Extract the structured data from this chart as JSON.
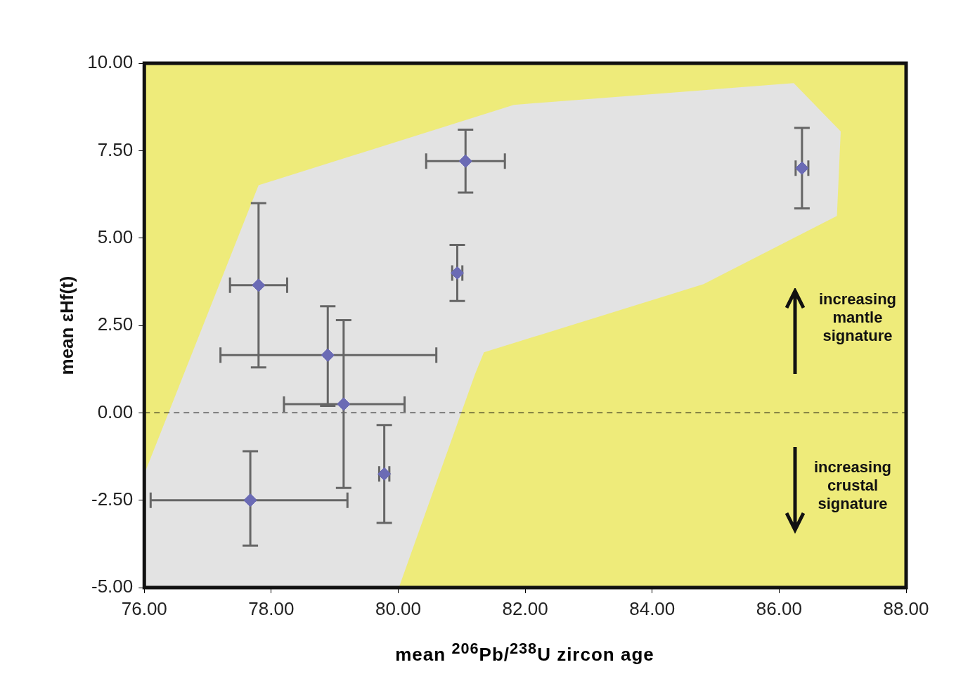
{
  "chart_data": {
    "type": "scatter",
    "xlabel": "mean $^{206}$Pb/$^{238}$U zircon age",
    "ylabel": "mean εHf(t)",
    "xlim": [
      76,
      88
    ],
    "xticks": [
      {
        "value": 76,
        "label": "76.00"
      },
      {
        "value": 78,
        "label": "78.00"
      },
      {
        "value": 80,
        "label": "80.00"
      },
      {
        "value": 82,
        "label": "82.00"
      },
      {
        "value": 84,
        "label": "84.00"
      },
      {
        "value": 86,
        "label": "86.00"
      },
      {
        "value": 88,
        "label": "88.00"
      }
    ],
    "ylim": [
      -5,
      10
    ],
    "yticks": [
      {
        "value": -5,
        "label": "-5.00"
      },
      {
        "value": -2.5,
        "label": "-2.50"
      },
      {
        "value": 0,
        "label": "0.00"
      },
      {
        "value": 2.5,
        "label": "2.50"
      },
      {
        "value": 5,
        "label": "5.00"
      },
      {
        "value": 7.5,
        "label": "7.50"
      },
      {
        "value": 10,
        "label": "10.00"
      }
    ],
    "grid": false,
    "legend": false,
    "series": [
      {
        "type": "area",
        "color": "#e3e3e3",
        "x": [
          76.02,
          77.8,
          81.82,
          86.23,
          86.97,
          86.91,
          84.81,
          81.35,
          81.21,
          80.01,
          76.02
        ],
        "values": [
          -1.66,
          6.51,
          8.81,
          9.43,
          8.05,
          5.63,
          3.68,
          1.73,
          1.11,
          -5,
          -5
        ]
      },
      {
        "color": "#6b6bb5",
        "marker": "diamond",
        "x": [
          77.8,
          78.89,
          79.14,
          77.67,
          79.78,
          80.93,
          81.06,
          86.36
        ],
        "values": [
          3.65,
          1.65,
          0.25,
          -2.5,
          -1.75,
          4.0,
          7.2,
          7.0
        ],
        "errors": [
          [
            1.3,
            6.0
          ],
          [
            0.2,
            3.05
          ],
          [
            -2.15,
            2.65
          ],
          [
            -3.8,
            -1.1
          ],
          [
            -3.15,
            -0.35
          ],
          [
            3.2,
            4.8
          ],
          [
            6.3,
            8.1
          ],
          [
            5.85,
            8.15
          ]
        ],
        "xerrors": [
          [
            77.35,
            78.25
          ],
          [
            77.2,
            80.6
          ],
          [
            78.2,
            80.1
          ],
          [
            76.1,
            79.2
          ],
          [
            79.7,
            79.86
          ],
          [
            80.85,
            81.01
          ],
          [
            80.44,
            81.68
          ],
          [
            86.26,
            86.46
          ]
        ]
      }
    ],
    "ref_lines": [
      {
        "axis": "y",
        "value": 0,
        "color": "#000000",
        "line_style": "dashed"
      }
    ],
    "annotations": [
      "increasing mantle signature",
      "increasing crustal signature"
    ]
  }
}
